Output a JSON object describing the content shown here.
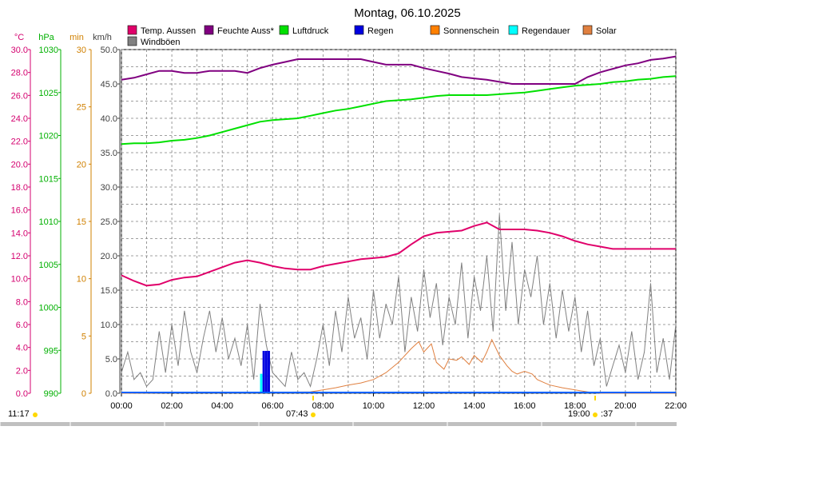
{
  "chart_data": {
    "type": "line",
    "title": "Montag, 06.10.2025",
    "x_ticks": [
      "00:00",
      "02:00",
      "04:00",
      "06:00",
      "08:00",
      "10:00",
      "12:00",
      "14:00",
      "16:00",
      "18:00",
      "20:00",
      "22:00"
    ],
    "xlim_hours": [
      0,
      22
    ],
    "axes": [
      {
        "unit": "°C",
        "color": "#d4006f",
        "min": 0,
        "max": 30,
        "ticks": [
          "0.0",
          "2.0",
          "4.0",
          "6.0",
          "8.0",
          "10.0",
          "12.0",
          "14.0",
          "16.0",
          "18.0",
          "20.0",
          "22.0",
          "24.0",
          "26.0",
          "28.0",
          "30.0"
        ]
      },
      {
        "unit": "hPa",
        "color": "#00b000",
        "min": 990,
        "max": 1030,
        "ticks": [
          "990",
          "995",
          "1000",
          "1005",
          "1010",
          "1015",
          "1020",
          "1025",
          "1030"
        ]
      },
      {
        "unit": "min",
        "color": "#d08000",
        "min": 0,
        "max": 30,
        "ticks": [
          "0",
          "5",
          "10",
          "15",
          "20",
          "25",
          "30"
        ]
      },
      {
        "unit": "km/h",
        "color": "#404040",
        "min": 0,
        "max": 50,
        "ticks": [
          "0.0",
          "5.0",
          "10.0",
          "15.0",
          "20.0",
          "25.0",
          "30.0",
          "35.0",
          "40.0",
          "45.0",
          "50.0"
        ]
      }
    ],
    "legend": [
      {
        "label": "Temp. Aussen",
        "color": "#e0006a"
      },
      {
        "label": "Feuchte Auss*",
        "color": "#800080"
      },
      {
        "label": "Luftdruck",
        "color": "#00e000"
      },
      {
        "label": "Regen",
        "color": "#0000e0"
      },
      {
        "label": "Sonnenschein",
        "color": "#ff8000"
      },
      {
        "label": "Regendauer",
        "color": "#00ffff"
      },
      {
        "label": "Solar",
        "color": "#e08040"
      },
      {
        "label": "Windböen",
        "color": "#808080"
      }
    ],
    "series": [
      {
        "name": "Temp. Aussen",
        "axis": "°C",
        "x": [
          0,
          0.5,
          1.0,
          1.5,
          2.0,
          2.5,
          3.0,
          3.5,
          4.0,
          4.5,
          5.0,
          5.5,
          6.0,
          6.5,
          7.0,
          7.5,
          8.0,
          8.5,
          9.0,
          9.5,
          10.0,
          10.5,
          11.0,
          11.5,
          12.0,
          12.5,
          13.0,
          13.5,
          14.0,
          14.5,
          15.0,
          15.5,
          16.0,
          16.5,
          17.0,
          17.5,
          18.0,
          18.5,
          19.0,
          19.5,
          20.0,
          20.5,
          21.0,
          21.5,
          22.0
        ],
        "y": [
          10.3,
          9.8,
          9.4,
          9.5,
          9.9,
          10.1,
          10.2,
          10.6,
          11.0,
          11.4,
          11.6,
          11.4,
          11.1,
          10.9,
          10.8,
          10.8,
          11.1,
          11.3,
          11.5,
          11.7,
          11.8,
          11.9,
          12.2,
          13.0,
          13.7,
          14.0,
          14.1,
          14.2,
          14.6,
          14.9,
          14.3,
          14.3,
          14.3,
          14.2,
          14.0,
          13.7,
          13.3,
          13.0,
          12.8,
          12.6,
          12.6,
          12.6,
          12.6,
          12.6,
          12.6
        ]
      },
      {
        "name": "Feuchte Auss*",
        "axis": "km/h",
        "x": [
          0,
          0.5,
          1.0,
          1.5,
          2.0,
          2.5,
          3.0,
          3.5,
          4.0,
          4.5,
          5.0,
          5.5,
          6.0,
          6.5,
          7.0,
          7.5,
          8.0,
          8.5,
          9.0,
          9.5,
          10.0,
          10.5,
          11.0,
          11.5,
          12.0,
          12.5,
          13.0,
          13.5,
          14.0,
          14.5,
          15.0,
          15.5,
          16.0,
          16.5,
          17.0,
          17.5,
          18.0,
          18.5,
          19.0,
          19.5,
          20.0,
          20.5,
          21.0,
          21.5,
          22.0
        ],
        "y": [
          45.6,
          45.9,
          46.4,
          46.9,
          46.9,
          46.6,
          46.6,
          46.9,
          46.9,
          46.9,
          46.6,
          47.3,
          47.8,
          48.2,
          48.6,
          48.6,
          48.6,
          48.6,
          48.6,
          48.6,
          48.2,
          47.8,
          47.8,
          47.8,
          47.3,
          46.9,
          46.5,
          46.0,
          45.8,
          45.6,
          45.3,
          45.0,
          45.0,
          45.0,
          45.0,
          45.0,
          45.0,
          46.0,
          46.7,
          47.2,
          47.7,
          48.0,
          48.5,
          48.7,
          49.0
        ]
      },
      {
        "name": "Luftdruck",
        "axis": "hPa",
        "x": [
          0,
          0.5,
          1.0,
          1.5,
          2.0,
          2.5,
          3.0,
          3.5,
          4.0,
          4.5,
          5.0,
          5.5,
          6.0,
          6.5,
          7.0,
          7.5,
          8.0,
          8.5,
          9.0,
          9.5,
          10.0,
          10.5,
          11.0,
          11.5,
          12.0,
          12.5,
          13.0,
          13.5,
          14.0,
          14.5,
          15.0,
          15.5,
          16.0,
          16.5,
          17.0,
          17.5,
          18.0,
          18.5,
          19.0,
          19.5,
          20.0,
          20.5,
          21.0,
          21.5,
          22.0
        ],
        "y": [
          1019.0,
          1019.1,
          1019.1,
          1019.2,
          1019.4,
          1019.5,
          1019.7,
          1020.0,
          1020.4,
          1020.8,
          1021.2,
          1021.6,
          1021.8,
          1021.9,
          1022.0,
          1022.3,
          1022.6,
          1022.9,
          1023.1,
          1023.4,
          1023.7,
          1024.0,
          1024.1,
          1024.2,
          1024.4,
          1024.6,
          1024.7,
          1024.7,
          1024.7,
          1024.7,
          1024.8,
          1024.9,
          1025.0,
          1025.2,
          1025.4,
          1025.6,
          1025.8,
          1025.9,
          1026.0,
          1026.2,
          1026.3,
          1026.5,
          1026.6,
          1026.8,
          1026.9
        ]
      },
      {
        "name": "Regen",
        "axis": "min",
        "type": "bar",
        "x": [
          5.6,
          5.7,
          5.8
        ],
        "y": [
          3.7,
          3.7,
          3.7
        ]
      },
      {
        "name": "Regendauer",
        "axis": "min",
        "type": "bar",
        "x": [
          5.5
        ],
        "y": [
          1.7
        ]
      },
      {
        "name": "Solar",
        "axis": "km/h",
        "x": [
          0,
          7.5,
          8.0,
          8.5,
          9.0,
          9.5,
          10.0,
          10.5,
          11.0,
          11.5,
          11.8,
          12.0,
          12.3,
          12.5,
          12.8,
          13.0,
          13.3,
          13.5,
          13.8,
          14.0,
          14.3,
          14.5,
          14.7,
          15.0,
          15.3,
          15.5,
          15.7,
          16.0,
          16.3,
          16.5,
          16.8,
          17.0,
          17.5,
          18.0,
          18.5,
          19.0,
          22.0
        ],
        "y": [
          0,
          0.2,
          0.5,
          0.8,
          1.2,
          1.5,
          2.0,
          3.0,
          4.5,
          6.5,
          7.5,
          6.0,
          7.2,
          4.5,
          3.5,
          5.0,
          4.8,
          5.3,
          4.2,
          5.5,
          4.5,
          6.0,
          7.8,
          5.5,
          4.0,
          3.2,
          2.8,
          3.2,
          2.8,
          2.0,
          1.5,
          1.2,
          0.8,
          0.5,
          0.2,
          0,
          0
        ]
      },
      {
        "name": "Windböen",
        "axis": "km/h",
        "x": [
          0,
          0.25,
          0.5,
          0.75,
          1.0,
          1.25,
          1.5,
          1.75,
          2.0,
          2.25,
          2.5,
          2.75,
          3.0,
          3.25,
          3.5,
          3.75,
          4.0,
          4.25,
          4.5,
          4.75,
          5.0,
          5.25,
          5.5,
          5.75,
          6.0,
          6.25,
          6.5,
          6.75,
          7.0,
          7.25,
          7.5,
          7.75,
          8.0,
          8.25,
          8.5,
          8.75,
          9.0,
          9.25,
          9.5,
          9.75,
          10.0,
          10.25,
          10.5,
          10.75,
          11.0,
          11.25,
          11.5,
          11.75,
          12.0,
          12.25,
          12.5,
          12.75,
          13.0,
          13.25,
          13.5,
          13.75,
          14.0,
          14.25,
          14.5,
          14.75,
          15.0,
          15.25,
          15.5,
          15.75,
          16.0,
          16.25,
          16.5,
          16.75,
          17.0,
          17.25,
          17.5,
          17.75,
          18.0,
          18.25,
          18.5,
          18.75,
          19.0,
          19.25,
          19.5,
          19.75,
          20.0,
          20.25,
          20.5,
          20.75,
          21.0,
          21.25,
          21.5,
          21.75,
          22.0
        ],
        "y": [
          3,
          6,
          2,
          3,
          1,
          2,
          9,
          3,
          10,
          4,
          12,
          6,
          3,
          8,
          12,
          6,
          11,
          5,
          8,
          4,
          10,
          2,
          13,
          7,
          3,
          2,
          1,
          6,
          2,
          3,
          1,
          5,
          10,
          4,
          12,
          6,
          14,
          8,
          11,
          5,
          15,
          8,
          13,
          10,
          17,
          6,
          14,
          9,
          18,
          11,
          16,
          7,
          14,
          10,
          19,
          8,
          17,
          12,
          20,
          9,
          26,
          12,
          22,
          10,
          18,
          14,
          20,
          10,
          16,
          8,
          15,
          9,
          14,
          6,
          12,
          4,
          8,
          1,
          4,
          7,
          3,
          9,
          2,
          6,
          16,
          3,
          8,
          2,
          10
        ]
      }
    ],
    "bottom_labels": [
      "11:17",
      "07:43",
      "19:00",
      ":37"
    ]
  }
}
